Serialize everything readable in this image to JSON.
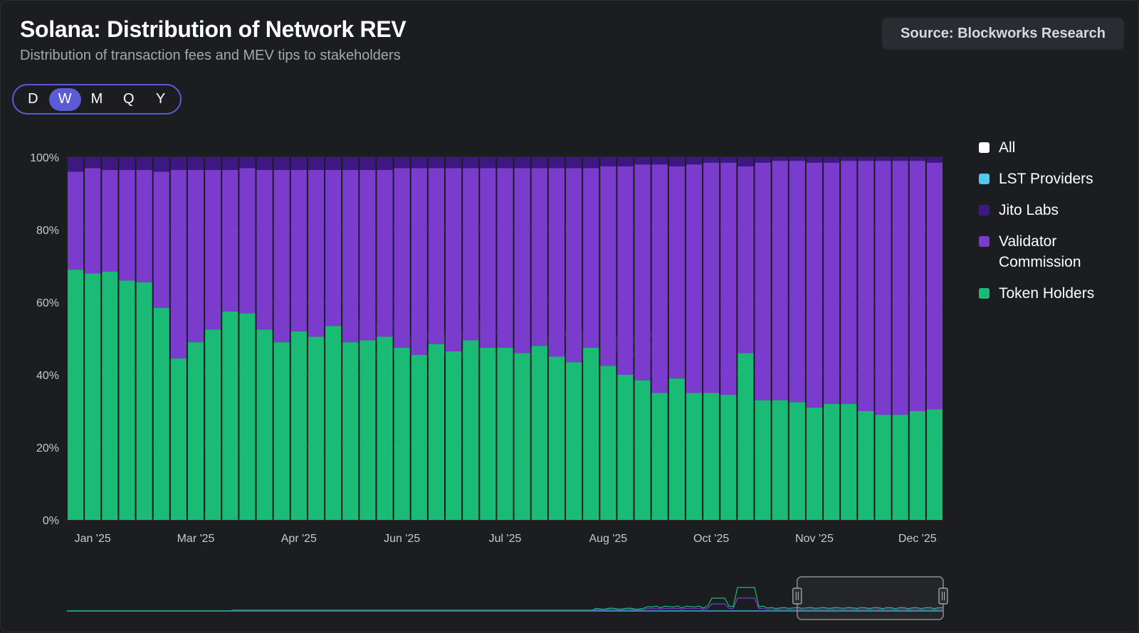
{
  "header": {
    "title": "Solana: Distribution of Network REV",
    "subtitle": "Distribution of transaction fees and MEV tips to stakeholders",
    "source": "Source: Blockworks Research"
  },
  "periods": [
    {
      "label": "D",
      "active": false
    },
    {
      "label": "W",
      "active": true
    },
    {
      "label": "M",
      "active": false
    },
    {
      "label": "Q",
      "active": false
    },
    {
      "label": "Y",
      "active": false
    }
  ],
  "legend": [
    {
      "label": "All",
      "color": "#ffffff"
    },
    {
      "label": "LST Providers",
      "color": "#4fc9ef"
    },
    {
      "label": "Jito Labs",
      "color": "#3d1782"
    },
    {
      "label": "Validator Commission",
      "color": "#7b3bcc"
    },
    {
      "label": "Token Holders",
      "color": "#1abb74"
    }
  ],
  "watermark": "Blockworks",
  "chart_data": {
    "type": "bar",
    "stacked": true,
    "y_format": "percent",
    "ylim": [
      0,
      100
    ],
    "y_ticks": [
      "0%",
      "20%",
      "40%",
      "60%",
      "80%",
      "100%"
    ],
    "x_tick_labels": [
      {
        "label": "Jan '25",
        "index": 1.5
      },
      {
        "label": "Mar '25",
        "index": 7.5
      },
      {
        "label": "Apr '25",
        "index": 13.5
      },
      {
        "label": "Jun '25",
        "index": 19.5
      },
      {
        "label": "Jul '25",
        "index": 25.5
      },
      {
        "label": "Aug '25",
        "index": 31.5
      },
      {
        "label": "Oct '25",
        "index": 37.5
      },
      {
        "label": "Nov '25",
        "index": 43.5
      },
      {
        "label": "Dec '25",
        "index": 49.5
      }
    ],
    "grid": true,
    "legend_position": "right",
    "series": [
      {
        "name": "Token Holders",
        "color": "#1abb74",
        "values": [
          69,
          68,
          68.5,
          66,
          65.5,
          58.5,
          44.5,
          49,
          52.5,
          57.5,
          57,
          52.5,
          49,
          52,
          50.5,
          53.5,
          49,
          49.5,
          50.5,
          47.5,
          45.5,
          48.5,
          46.5,
          49.5,
          47.5,
          47.5,
          46,
          48,
          45,
          43.5,
          47.5,
          42.5,
          40,
          38.5,
          35,
          39,
          35,
          35,
          34.5,
          46,
          33,
          33,
          32.5,
          31,
          32,
          32,
          30,
          29,
          29,
          30,
          30.5
        ]
      },
      {
        "name": "Validator Commission",
        "color": "#7b3bcc",
        "values": [
          27,
          29,
          28,
          30.5,
          31,
          37.5,
          52,
          47.5,
          44,
          39,
          40,
          44,
          47.5,
          44.5,
          46,
          43,
          47.5,
          47,
          46,
          49.5,
          51.5,
          48.5,
          50.5,
          47.5,
          49.5,
          49.5,
          51,
          49,
          52,
          53.5,
          49.5,
          55,
          57.5,
          59.5,
          63,
          58.5,
          63,
          63.5,
          64,
          51.5,
          65.5,
          66,
          66.5,
          67.5,
          66.5,
          67,
          69,
          70,
          70,
          69,
          68
        ]
      },
      {
        "name": "Jito Labs",
        "color": "#3d1782",
        "values": [
          4,
          3,
          3.5,
          3.5,
          3.5,
          4,
          3.5,
          3.5,
          3.5,
          3.5,
          3,
          3.5,
          3.5,
          3.5,
          3.5,
          3.5,
          3.5,
          3.5,
          3.5,
          3,
          3,
          3,
          3,
          3,
          3,
          3,
          3,
          3,
          3,
          3,
          3,
          2.5,
          2.5,
          2,
          2,
          2.5,
          2,
          1.5,
          1.5,
          2.5,
          1.5,
          1,
          1,
          1.5,
          1.5,
          1,
          1,
          1,
          1,
          1,
          1.5
        ]
      },
      {
        "name": "LST Providers",
        "color": "#4fc9ef",
        "values": [
          0,
          0,
          0,
          0,
          0,
          0,
          0,
          0,
          0,
          0,
          0,
          0,
          0,
          0,
          0,
          0,
          0,
          0,
          0,
          0,
          0,
          0,
          0,
          0,
          0,
          0,
          0,
          0,
          0,
          0,
          0,
          0,
          0,
          0,
          0,
          0,
          0,
          0,
          0,
          0,
          0,
          0,
          0,
          0,
          0,
          0,
          0,
          0,
          0,
          0,
          0
        ]
      }
    ],
    "navigator": {
      "selection_start_index": 42,
      "selection_end_index": 50
    }
  }
}
